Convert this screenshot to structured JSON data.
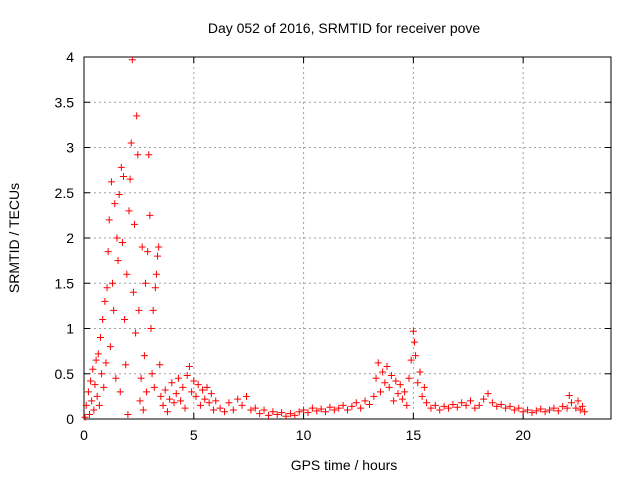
{
  "chart_data": {
    "type": "scatter",
    "title": "Day 052 of 2016, SRMTID for receiver pove",
    "xlabel": "GPS time / hours",
    "ylabel": "SRMTID / TECUs",
    "xlim": [
      0,
      24
    ],
    "ylim": [
      0,
      4
    ],
    "xticks": [
      "0",
      "5",
      "10",
      "15",
      "20"
    ],
    "yticks": [
      "0",
      "0.5",
      "1",
      "1.5",
      "2",
      "2.5",
      "3",
      "3.5",
      "4"
    ],
    "grid": true,
    "marker": "+",
    "color": "#ff0000",
    "series": [
      {
        "points": [
          [
            0.05,
            0.02
          ],
          [
            0.1,
            0.15
          ],
          [
            0.2,
            0.3
          ],
          [
            0.25,
            0.05
          ],
          [
            0.3,
            0.42
          ],
          [
            0.35,
            0.2
          ],
          [
            0.4,
            0.55
          ],
          [
            0.45,
            0.1
          ],
          [
            0.5,
            0.38
          ],
          [
            0.55,
            0.65
          ],
          [
            0.6,
            0.25
          ],
          [
            0.65,
            0.72
          ],
          [
            0.7,
            0.15
          ],
          [
            0.75,
            0.9
          ],
          [
            0.8,
            0.5
          ],
          [
            0.85,
            1.1
          ],
          [
            0.9,
            0.35
          ],
          [
            0.95,
            1.3
          ],
          [
            1.0,
            0.62
          ],
          [
            1.05,
            1.45
          ],
          [
            1.1,
            1.85
          ],
          [
            1.15,
            2.2
          ],
          [
            1.2,
            0.8
          ],
          [
            1.25,
            2.62
          ],
          [
            1.3,
            1.5
          ],
          [
            1.35,
            1.2
          ],
          [
            1.4,
            2.38
          ],
          [
            1.45,
            0.45
          ],
          [
            1.5,
            2.0
          ],
          [
            1.55,
            1.75
          ],
          [
            1.6,
            2.48
          ],
          [
            1.65,
            0.3
          ],
          [
            1.7,
            2.78
          ],
          [
            1.75,
            1.95
          ],
          [
            1.8,
            2.68
          ],
          [
            1.85,
            1.1
          ],
          [
            1.9,
            0.6
          ],
          [
            1.95,
            1.6
          ],
          [
            2.0,
            0.05
          ],
          [
            2.05,
            2.3
          ],
          [
            2.1,
            2.65
          ],
          [
            2.15,
            3.05
          ],
          [
            2.2,
            3.97
          ],
          [
            2.25,
            1.4
          ],
          [
            2.3,
            2.15
          ],
          [
            2.35,
            0.95
          ],
          [
            2.4,
            3.35
          ],
          [
            2.45,
            2.92
          ],
          [
            2.5,
            1.2
          ],
          [
            2.55,
            0.2
          ],
          [
            2.6,
            0.45
          ],
          [
            2.65,
            1.9
          ],
          [
            2.7,
            0.1
          ],
          [
            2.75,
            0.7
          ],
          [
            2.8,
            1.5
          ],
          [
            2.85,
            0.3
          ],
          [
            2.9,
            1.85
          ],
          [
            2.95,
            2.92
          ],
          [
            3.0,
            2.25
          ],
          [
            3.05,
            1.0
          ],
          [
            3.1,
            0.5
          ],
          [
            3.15,
            1.2
          ],
          [
            3.2,
            0.35
          ],
          [
            3.25,
            1.45
          ],
          [
            3.3,
            1.6
          ],
          [
            3.35,
            1.8
          ],
          [
            3.4,
            1.9
          ],
          [
            3.45,
            0.6
          ],
          [
            3.5,
            0.25
          ],
          [
            3.6,
            0.15
          ],
          [
            3.7,
            0.32
          ],
          [
            3.8,
            0.08
          ],
          [
            3.9,
            0.22
          ],
          [
            4.0,
            0.4
          ],
          [
            4.1,
            0.18
          ],
          [
            4.2,
            0.28
          ],
          [
            4.3,
            0.45
          ],
          [
            4.4,
            0.2
          ],
          [
            4.5,
            0.35
          ],
          [
            4.6,
            0.12
          ],
          [
            4.7,
            0.48
          ],
          [
            4.8,
            0.58
          ],
          [
            4.9,
            0.3
          ],
          [
            5.0,
            0.42
          ],
          [
            5.1,
            0.25
          ],
          [
            5.2,
            0.38
          ],
          [
            5.3,
            0.15
          ],
          [
            5.4,
            0.32
          ],
          [
            5.5,
            0.22
          ],
          [
            5.6,
            0.35
          ],
          [
            5.7,
            0.18
          ],
          [
            5.8,
            0.28
          ],
          [
            5.9,
            0.1
          ],
          [
            6.0,
            0.2
          ],
          [
            6.2,
            0.12
          ],
          [
            6.4,
            0.08
          ],
          [
            6.6,
            0.18
          ],
          [
            6.8,
            0.1
          ],
          [
            7.0,
            0.22
          ],
          [
            7.2,
            0.15
          ],
          [
            7.4,
            0.25
          ],
          [
            7.6,
            0.1
          ],
          [
            7.8,
            0.12
          ],
          [
            8.0,
            0.06
          ],
          [
            8.2,
            0.1
          ],
          [
            8.4,
            0.04
          ],
          [
            8.6,
            0.08
          ],
          [
            8.8,
            0.05
          ],
          [
            9.0,
            0.07
          ],
          [
            9.2,
            0.03
          ],
          [
            9.4,
            0.06
          ],
          [
            9.6,
            0.04
          ],
          [
            9.8,
            0.08
          ],
          [
            10.0,
            0.1
          ],
          [
            10.2,
            0.07
          ],
          [
            10.4,
            0.12
          ],
          [
            10.6,
            0.09
          ],
          [
            10.8,
            0.11
          ],
          [
            11.0,
            0.08
          ],
          [
            11.2,
            0.13
          ],
          [
            11.4,
            0.1
          ],
          [
            11.6,
            0.12
          ],
          [
            11.8,
            0.15
          ],
          [
            12.0,
            0.1
          ],
          [
            12.2,
            0.14
          ],
          [
            12.4,
            0.18
          ],
          [
            12.6,
            0.12
          ],
          [
            12.8,
            0.2
          ],
          [
            13.0,
            0.16
          ],
          [
            13.2,
            0.25
          ],
          [
            13.3,
            0.45
          ],
          [
            13.4,
            0.62
          ],
          [
            13.5,
            0.3
          ],
          [
            13.6,
            0.52
          ],
          [
            13.7,
            0.4
          ],
          [
            13.8,
            0.58
          ],
          [
            13.9,
            0.35
          ],
          [
            14.0,
            0.48
          ],
          [
            14.1,
            0.2
          ],
          [
            14.2,
            0.42
          ],
          [
            14.3,
            0.28
          ],
          [
            14.4,
            0.38
          ],
          [
            14.5,
            0.22
          ],
          [
            14.6,
            0.3
          ],
          [
            14.7,
            0.15
          ],
          [
            14.8,
            0.45
          ],
          [
            14.9,
            0.65
          ],
          [
            15.0,
            0.97
          ],
          [
            15.05,
            0.85
          ],
          [
            15.1,
            0.7
          ],
          [
            15.2,
            0.4
          ],
          [
            15.3,
            0.52
          ],
          [
            15.4,
            0.25
          ],
          [
            15.5,
            0.35
          ],
          [
            15.6,
            0.18
          ],
          [
            15.8,
            0.12
          ],
          [
            16.0,
            0.15
          ],
          [
            16.2,
            0.1
          ],
          [
            16.4,
            0.14
          ],
          [
            16.6,
            0.12
          ],
          [
            16.8,
            0.16
          ],
          [
            17.0,
            0.13
          ],
          [
            17.2,
            0.18
          ],
          [
            17.4,
            0.15
          ],
          [
            17.6,
            0.2
          ],
          [
            17.8,
            0.12
          ],
          [
            18.0,
            0.15
          ],
          [
            18.2,
            0.22
          ],
          [
            18.4,
            0.28
          ],
          [
            18.6,
            0.18
          ],
          [
            18.8,
            0.14
          ],
          [
            19.0,
            0.16
          ],
          [
            19.2,
            0.12
          ],
          [
            19.4,
            0.14
          ],
          [
            19.6,
            0.1
          ],
          [
            19.8,
            0.12
          ],
          [
            20.0,
            0.08
          ],
          [
            20.2,
            0.1
          ],
          [
            20.4,
            0.07
          ],
          [
            20.6,
            0.09
          ],
          [
            20.8,
            0.11
          ],
          [
            21.0,
            0.08
          ],
          [
            21.2,
            0.1
          ],
          [
            21.4,
            0.12
          ],
          [
            21.6,
            0.09
          ],
          [
            21.8,
            0.14
          ],
          [
            22.0,
            0.12
          ],
          [
            22.1,
            0.26
          ],
          [
            22.2,
            0.18
          ],
          [
            22.4,
            0.12
          ],
          [
            22.5,
            0.2
          ],
          [
            22.6,
            0.1
          ],
          [
            22.7,
            0.14
          ],
          [
            22.8,
            0.08
          ]
        ]
      }
    ]
  }
}
